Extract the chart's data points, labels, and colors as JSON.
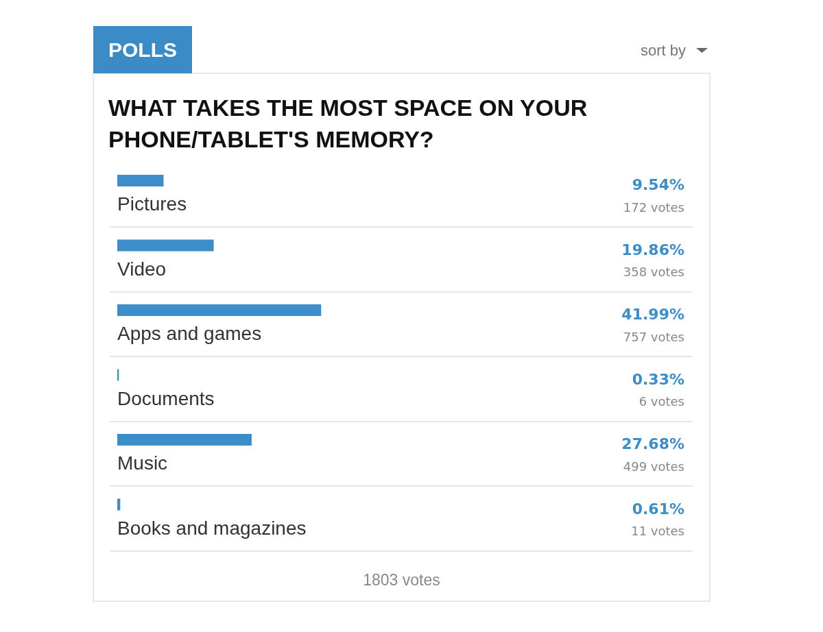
{
  "chart_data": {
    "type": "bar",
    "orientation": "horizontal",
    "title": "WHAT TAKES THE MOST SPACE ON YOUR PHONE/TABLET'S MEMORY?",
    "categories": [
      "Pictures",
      "Video",
      "Apps and games",
      "Documents",
      "Music",
      "Books and magazines"
    ],
    "values": [
      9.54,
      19.86,
      41.99,
      0.33,
      27.68,
      0.61
    ],
    "color": "#3d8dc8",
    "value_labels": [
      "9.54%",
      "19.86%",
      "41.99%",
      "0.33%",
      "27.68%",
      "0.61%"
    ],
    "tick_labels": "y",
    "grid": "y",
    "annotations": [
      "POLLS",
      "sort by",
      "172 votes",
      "358 votes",
      "757 votes",
      "6 votes",
      "499 votes",
      "11 votes",
      "1803 votes"
    ]
  }
}
